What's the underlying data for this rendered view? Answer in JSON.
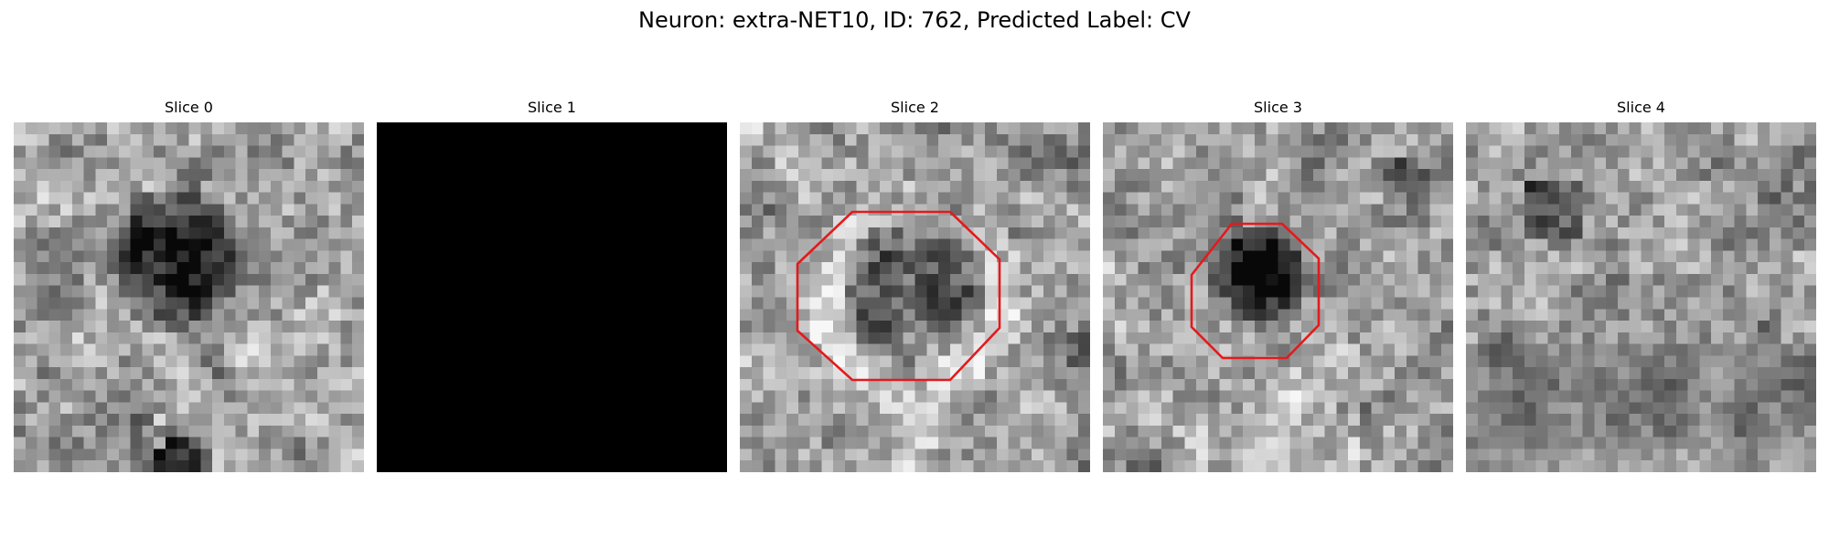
{
  "title": "Neuron: extra-NET10, ID: 762, Predicted Label: CV",
  "slices": [
    {
      "label": "Slice 0",
      "pattern": "dark-center-blob",
      "blank": false,
      "outline": null
    },
    {
      "label": "Slice 1",
      "pattern": "none",
      "blank": true,
      "outline": null
    },
    {
      "label": "Slice 2",
      "pattern": "octagon-cell",
      "blank": false,
      "outline": "octagon"
    },
    {
      "label": "Slice 3",
      "pattern": "dark-cell-offset",
      "blank": false,
      "outline": "octagon"
    },
    {
      "label": "Slice 4",
      "pattern": "textured-noise",
      "blank": false,
      "outline": null
    }
  ],
  "outline_color": "#e31a1c",
  "blank_color": "#000000"
}
